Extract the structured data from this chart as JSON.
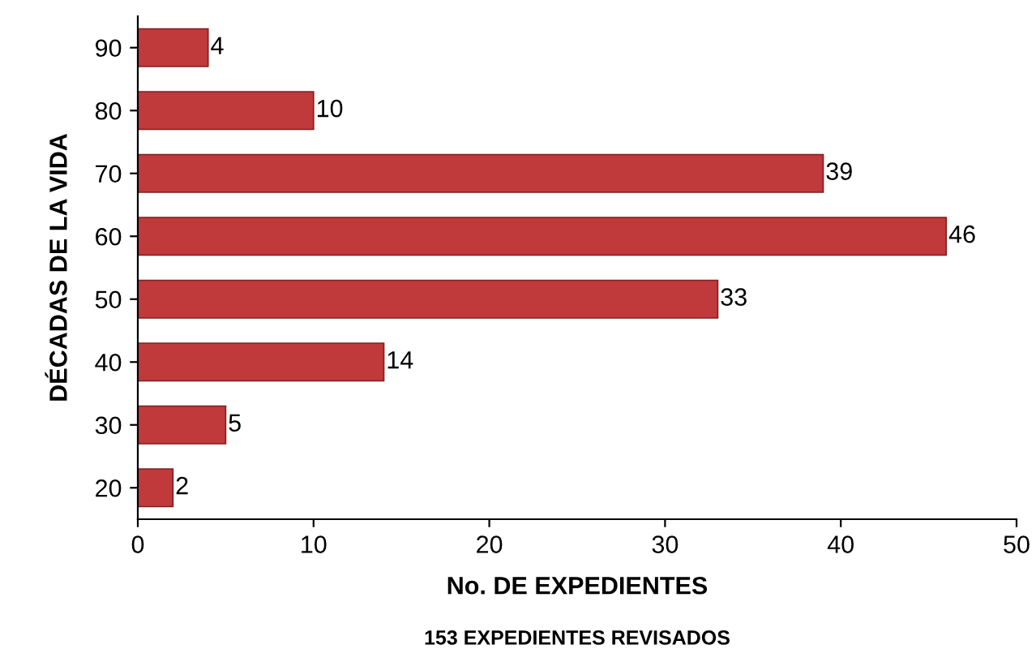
{
  "chart_data": {
    "type": "bar",
    "orientation": "horizontal",
    "categories": [
      "90",
      "80",
      "70",
      "60",
      "50",
      "40",
      "30",
      "20"
    ],
    "values": [
      4,
      10,
      39,
      46,
      33,
      14,
      5,
      2
    ],
    "color": "#c0393b",
    "xlim": [
      0,
      50
    ],
    "xticks": [
      0,
      10,
      20,
      30,
      40,
      50
    ],
    "xlabel": "No. DE EXPEDIENTES",
    "ylabel": "DÉCADAS DE LA VIDA",
    "annotations": [
      "153 EXPEDIENTES REVISADOS"
    ],
    "data_labels": true,
    "grid": false,
    "legend": false
  }
}
